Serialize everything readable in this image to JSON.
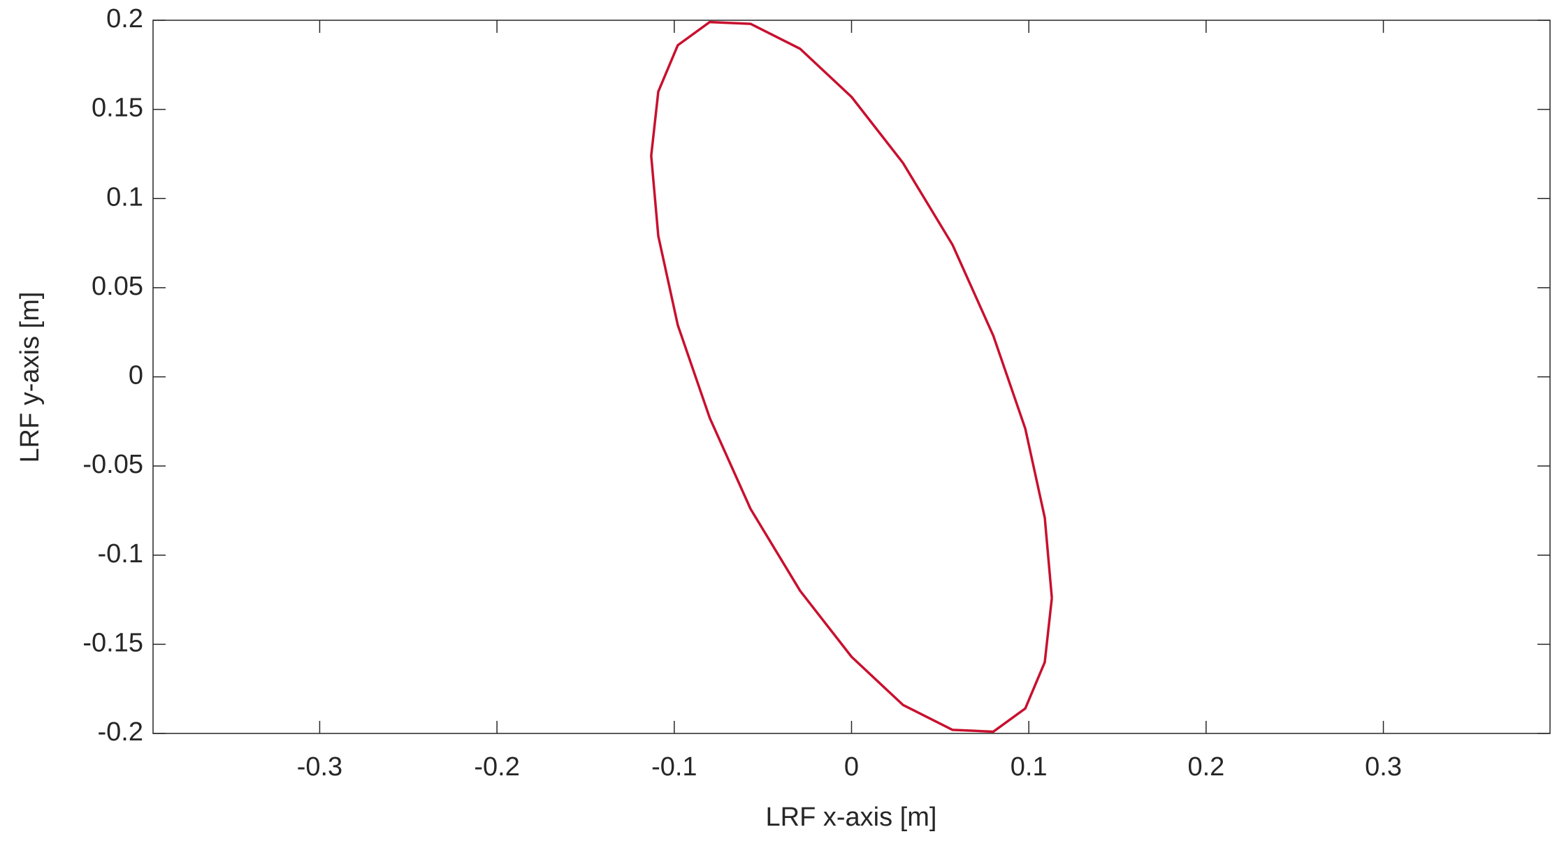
{
  "chart_data": {
    "type": "line",
    "x_label": "LRF x-axis [m]",
    "y_label": "LRF y-axis [m]",
    "x": [
      0.113,
      0.109,
      0.098,
      0.08,
      0.057,
      0.029,
      0,
      -0.029,
      -0.057,
      -0.08,
      -0.098,
      -0.109,
      -0.113,
      -0.109,
      -0.098,
      -0.08,
      -0.057,
      -0.029,
      0,
      0.029,
      0.057,
      0.08,
      0.098,
      0.109,
      0.113
    ],
    "series": [
      {
        "color": "#c8102e",
        "values": [
          -0.124,
          -0.079,
          -0.029,
          0.023,
          0.074,
          0.12,
          0.157,
          0.184,
          0.198,
          0.199,
          0.186,
          0.16,
          0.124,
          0.079,
          0.029,
          -0.023,
          -0.074,
          -0.12,
          -0.157,
          -0.184,
          -0.198,
          -0.199,
          -0.186,
          -0.16,
          -0.124
        ]
      }
    ],
    "xlim": [
      -0.394,
      0.394
    ],
    "ylim": [
      -0.2,
      0.2
    ],
    "xticks": [
      -0.3,
      -0.2,
      -0.1,
      0,
      0.1,
      0.2,
      0.3
    ],
    "yticks": [
      -0.2,
      -0.15,
      -0.1,
      -0.05,
      0,
      0.05,
      0.1,
      0.15,
      0.2
    ],
    "grid": false
  }
}
